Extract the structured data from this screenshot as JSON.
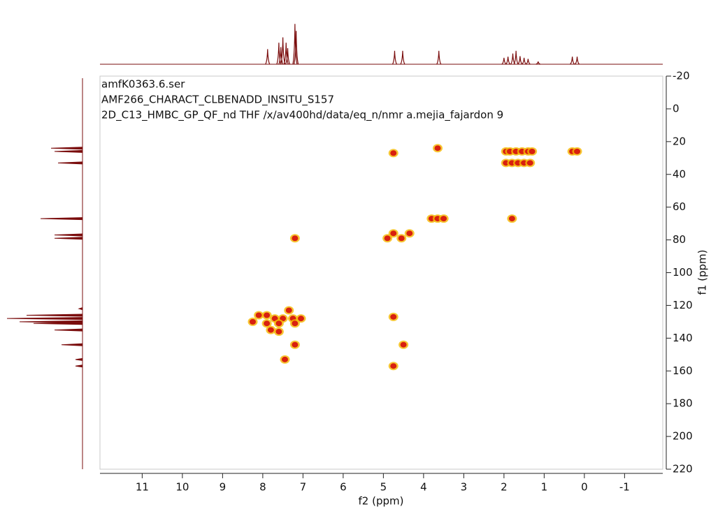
{
  "chart_data": {
    "type": "contour",
    "header_lines": [
      "amfK0363.6.ser",
      "AMF266_CHARACT_CLBENADD_INSITU_S157",
      "2D_C13_HMBC_GP_QF_nd THF /x/av400hd/data/eq_n/nmr a.mejia_fajardon 9"
    ],
    "x_label": "f2 (ppm)",
    "y_label": "f1 (ppm)",
    "xlim": [
      12.05,
      -1.95
    ],
    "xticks": [
      11,
      10,
      9,
      8,
      7,
      6,
      5,
      4,
      3,
      2,
      1,
      0,
      -1
    ],
    "ylim": [
      -20,
      220
    ],
    "yticks": [
      -20,
      0,
      20,
      40,
      60,
      80,
      100,
      120,
      140,
      160,
      180,
      200,
      220
    ],
    "color": "#d8200f",
    "halo_color": "#f5b800",
    "x": [
      1.95,
      1.85,
      1.7,
      1.55,
      1.4,
      1.3,
      1.95,
      1.8,
      1.65,
      1.5,
      1.35,
      0.3,
      0.18,
      3.65,
      4.75,
      3.8,
      3.65,
      3.5,
      1.8,
      7.2,
      4.9,
      4.75,
      4.55,
      4.35,
      8.1,
      7.9,
      7.7,
      7.5,
      7.35,
      7.25,
      7.05,
      7.9,
      7.6,
      7.2,
      8.25,
      7.8,
      7.6,
      7.2,
      7.45,
      4.75,
      4.5,
      4.75
    ],
    "values": [
      26,
      26,
      26,
      26,
      26,
      26,
      33,
      33,
      33,
      33,
      33,
      26,
      26,
      24,
      27,
      67,
      67,
      67,
      67,
      79,
      79,
      76,
      79,
      76,
      126,
      126,
      128,
      128,
      123,
      128,
      128,
      131,
      131,
      131,
      130,
      135,
      136,
      144,
      153,
      127,
      144,
      157
    ],
    "line_color": "#7a0c0c",
    "f2_projection": {
      "x": [
        7.88,
        7.6,
        7.55,
        7.5,
        7.42,
        7.38,
        7.2,
        7.17,
        4.72,
        4.52,
        3.62,
        2.0,
        1.9,
        1.78,
        1.7,
        1.6,
        1.5,
        1.4,
        1.15,
        0.3,
        0.18
      ],
      "values": [
        28,
        40,
        32,
        50,
        40,
        30,
        75,
        62,
        25,
        25,
        25,
        12,
        14,
        20,
        25,
        15,
        12,
        10,
        5,
        14,
        14
      ]
    },
    "f1_projection": {
      "y": [
        24,
        26,
        33,
        67,
        77,
        79,
        122,
        126,
        128,
        130,
        131,
        135,
        144,
        153,
        157
      ],
      "values": [
        45,
        40,
        35,
        60,
        40,
        40,
        5,
        80,
        108,
        90,
        70,
        40,
        30,
        10,
        10
      ]
    }
  }
}
